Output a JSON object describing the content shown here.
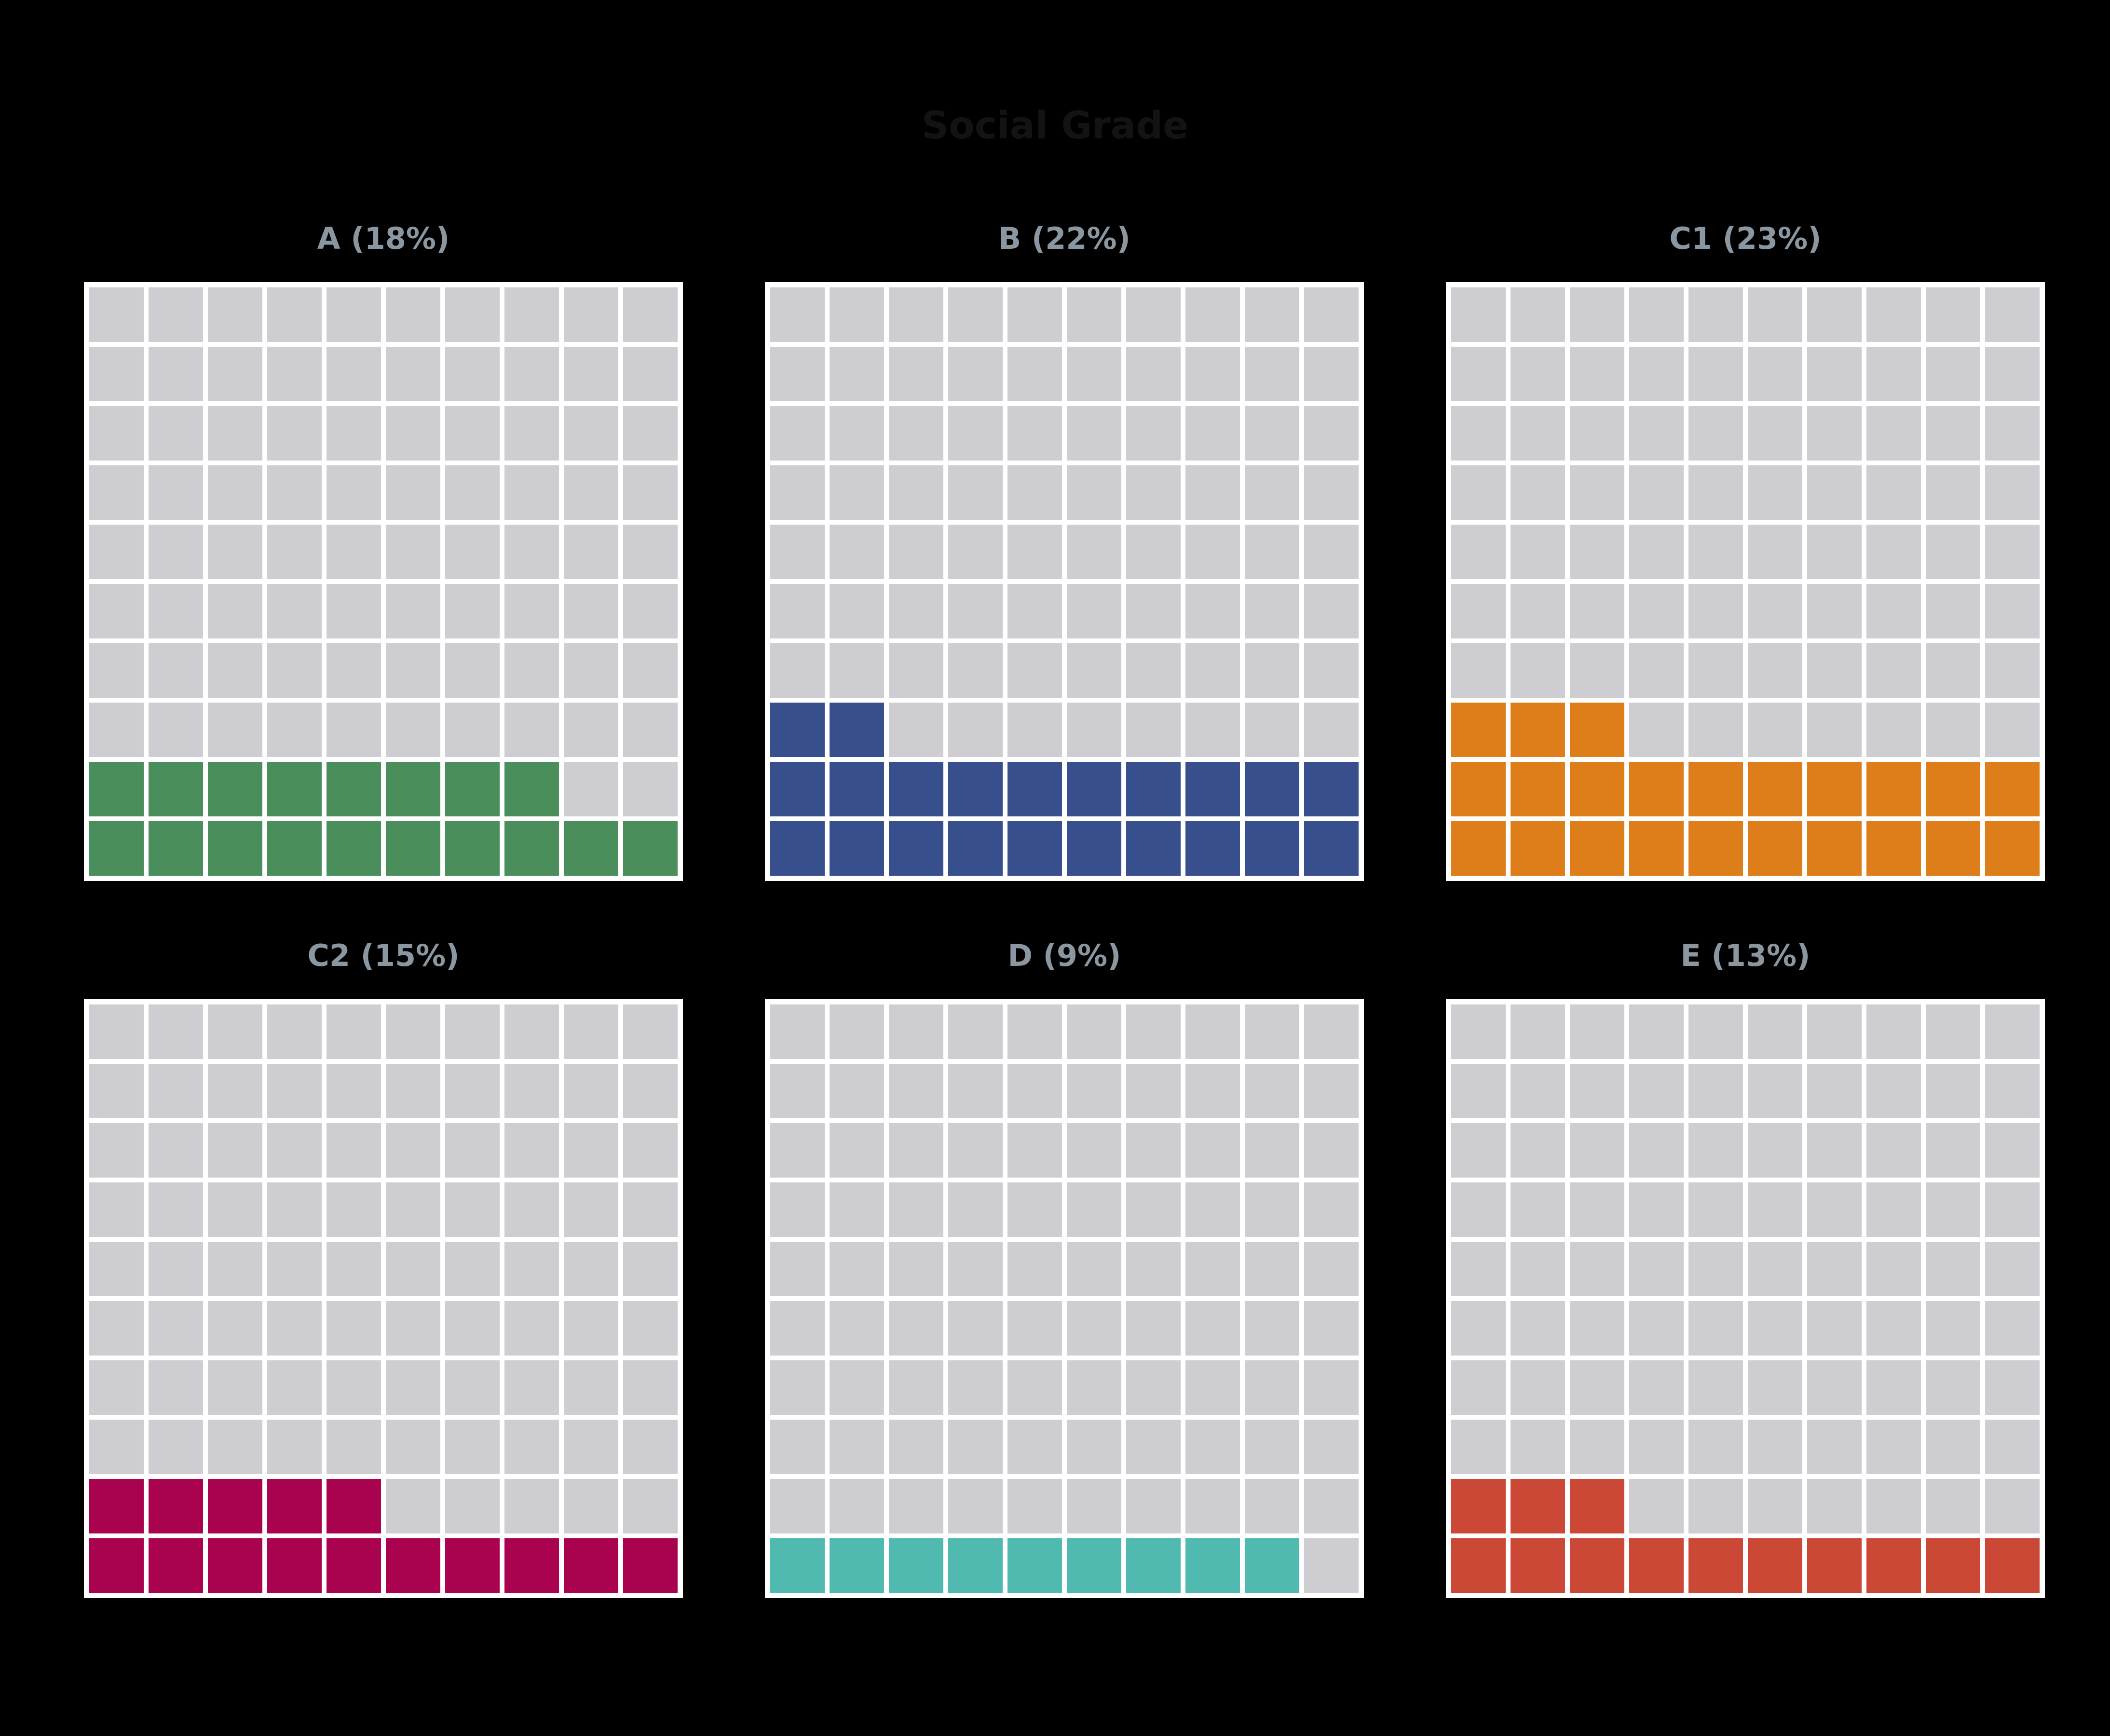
{
  "title": {
    "text": "Social Grade",
    "color": "#131313"
  },
  "layout": {
    "background": "#000000",
    "panel_background": "#ffffff",
    "empty_cell_color": "#cdcdd2",
    "subplot_title_color": "#8a96a0",
    "grid_layout": "2 rows x 3 columns",
    "legend": "none",
    "axes": "none"
  },
  "chart_data": {
    "type": "waffle",
    "title": "Social Grade",
    "grid": {
      "rows": 10,
      "cols": 10
    },
    "cell_unit_percent": 1,
    "fill_origin": "bottom-left, rows fill left-to-right upward",
    "panels": [
      {
        "id": "A",
        "label": "A (18%)",
        "value": 18,
        "color": "#4a8e5c"
      },
      {
        "id": "B",
        "label": "B (22%)",
        "value": 22,
        "color": "#374f8d"
      },
      {
        "id": "C1",
        "label": "C1 (23%)",
        "value": 23,
        "color": "#de7e1a"
      },
      {
        "id": "C2",
        "label": "C2 (15%)",
        "value": 15,
        "color": "#a90350"
      },
      {
        "id": "D",
        "label": "D (9%)",
        "value": 9,
        "color": "#50bab0"
      },
      {
        "id": "E",
        "label": "E (13%)",
        "value": 13,
        "color": "#cb4836"
      }
    ]
  }
}
